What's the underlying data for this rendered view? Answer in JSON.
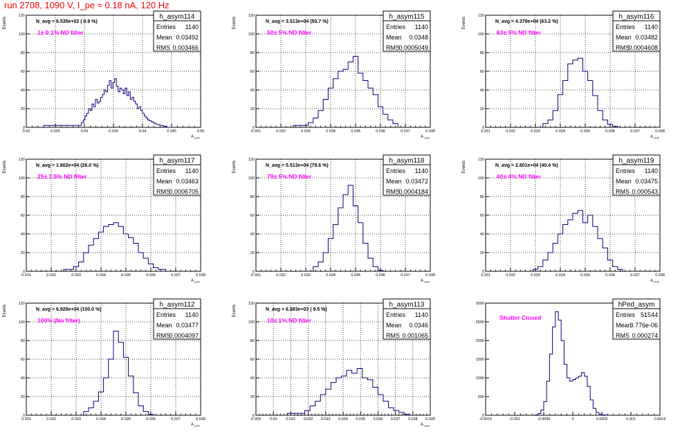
{
  "title": "run 2708,  1090 V, I_pe ≈ 0.18 nA, 120 Hz",
  "colors": {
    "title": "#ff0000",
    "histogram_line": "#00007f",
    "label_text": "#ff00ff",
    "grid": "#000000",
    "background": "#ffffff"
  },
  "chart_data": [
    {
      "type": "histogram",
      "name": "h_asym114",
      "stats": {
        "entries_label": "Entries",
        "entries": "1140",
        "mean_label": "Mean",
        "mean": "0.03492",
        "rms_label": "RMS",
        "rms": "0.003466"
      },
      "n_avg": "N_avg = 6.535e+02 ( 0.9 %)",
      "filter_label": "1± 0.1% ND filter",
      "ylabel": "Events",
      "xlabel": "A",
      "xsub": "LED",
      "xlim": [
        0.02,
        0.05
      ],
      "ylim": [
        0,
        120
      ],
      "xticks": [
        "0.02",
        "0.025",
        "0.03",
        "0.035",
        "0.04",
        "0.045",
        "0.05"
      ],
      "yticks": [
        "0",
        "20",
        "40",
        "60",
        "80",
        "100",
        "120"
      ],
      "grid": true,
      "bin_edges": [
        0.023,
        0.0295,
        0.0298,
        0.0301,
        0.0304,
        0.0307,
        0.031,
        0.0313,
        0.0316,
        0.0319,
        0.0322,
        0.0325,
        0.0328,
        0.0331,
        0.0334,
        0.0337,
        0.034,
        0.0343,
        0.0346,
        0.0349,
        0.0352,
        0.0355,
        0.0358,
        0.0361,
        0.0364,
        0.0367,
        0.037,
        0.0373,
        0.0376,
        0.0379,
        0.0382,
        0.0385,
        0.0388,
        0.0391,
        0.0394,
        0.0397,
        0.04,
        0.0403,
        0.0406,
        0.0409,
        0.0412,
        0.0415,
        0.0418,
        0.0421,
        0.0424,
        0.0427,
        0.043,
        0.0433,
        0.0436,
        0.0439,
        0.0442,
        0.045
      ],
      "counts": [
        2,
        5,
        8,
        12,
        15,
        20,
        18,
        25,
        22,
        30,
        26,
        28,
        32,
        35,
        40,
        38,
        45,
        50,
        42,
        48,
        52,
        44,
        38,
        42,
        40,
        36,
        42,
        34,
        38,
        30,
        32,
        28,
        25,
        20,
        22,
        18,
        15,
        12,
        10,
        8,
        7,
        6,
        5,
        4,
        3,
        3,
        2,
        2,
        1,
        1,
        0
      ]
    },
    {
      "type": "histogram",
      "name": "h_asym115",
      "stats": {
        "entries_label": "Entries",
        "entries": "1140",
        "mean_label": "Mean",
        "mean": "0.0348",
        "rms_label": "RMS",
        "rms": "0.0005049"
      },
      "n_avg": "N_avg = 3.513e+04 (50.7 %)",
      "filter_label": "50± 5% ND filter",
      "ylabel": "Events",
      "xlabel": "A",
      "xsub": "LED",
      "xlim": [
        0.031,
        0.038
      ],
      "ylim": [
        0,
        120
      ],
      "xticks": [
        "0.031",
        "0.032",
        "0.033",
        "0.034",
        "0.035",
        "0.036",
        "0.037",
        "0.038"
      ],
      "yticks": [
        "0",
        "20",
        "40",
        "60",
        "80",
        "100",
        "120"
      ],
      "grid": true,
      "bin_edges": [
        0.0325,
        0.0331,
        0.0333,
        0.0335,
        0.0337,
        0.0339,
        0.0341,
        0.0343,
        0.0345,
        0.0347,
        0.0349,
        0.0351,
        0.0353,
        0.0355,
        0.0357,
        0.0359,
        0.0361,
        0.0363,
        0.0365,
        0.0367
      ],
      "counts": [
        2,
        5,
        10,
        18,
        30,
        42,
        52,
        60,
        62,
        70,
        76,
        58,
        50,
        42,
        35,
        22,
        14,
        8,
        4,
        1
      ]
    },
    {
      "type": "histogram",
      "name": "h_asym116",
      "stats": {
        "entries_label": "Entries",
        "entries": "1140",
        "mean_label": "Mean",
        "mean": "0.03482",
        "rms_label": "RMS",
        "rms": "0.0004608"
      },
      "n_avg": "N_avg = 4.379e+04 (63.2 %)",
      "filter_label": "63± 5% ND filter",
      "ylabel": "Events",
      "xlabel": "A",
      "xsub": "LED",
      "xlim": [
        0.031,
        0.038
      ],
      "ylim": [
        0,
        120
      ],
      "xticks": [
        "0.031",
        "0.032",
        "0.033",
        "0.034",
        "0.035",
        "0.036",
        "0.037",
        "0.038"
      ],
      "yticks": [
        "0",
        "20",
        "40",
        "60",
        "80",
        "100",
        "120"
      ],
      "grid": true,
      "bin_edges": [
        0.0333,
        0.0335,
        0.0337,
        0.0339,
        0.0341,
        0.0343,
        0.0345,
        0.0347,
        0.0349,
        0.0351,
        0.0353,
        0.0355,
        0.0357,
        0.0359,
        0.0361,
        0.0363
      ],
      "counts": [
        4,
        8,
        18,
        35,
        50,
        68,
        72,
        74,
        60,
        50,
        34,
        18,
        8,
        3,
        1
      ]
    },
    {
      "type": "histogram",
      "name": "h_asym117",
      "stats": {
        "entries_label": "Entries",
        "entries": "1140",
        "mean_label": "Mean",
        "mean": "0.03463",
        "rms_label": "RMS",
        "rms": "0.0006705"
      },
      "n_avg": "N_avg = 1.802e+04 (26.0 %)",
      "filter_label": "25± 2.5% ND filter",
      "ylabel": "Events",
      "xlabel": "A",
      "xsub": "LED",
      "xlim": [
        0.031,
        0.038
      ],
      "ylim": [
        0,
        120
      ],
      "xticks": [
        "0.031",
        "0.032",
        "0.033",
        "0.034",
        "0.035",
        "0.036",
        "0.037",
        "0.038"
      ],
      "yticks": [
        "0",
        "20",
        "40",
        "60",
        "80",
        "100",
        "120"
      ],
      "grid": true,
      "bin_edges": [
        0.0325,
        0.0329,
        0.0331,
        0.0333,
        0.0335,
        0.0337,
        0.0339,
        0.0341,
        0.0343,
        0.0345,
        0.0347,
        0.0349,
        0.0351,
        0.0353,
        0.0355,
        0.0357,
        0.0359,
        0.0361,
        0.0363,
        0.0366
      ],
      "counts": [
        2,
        5,
        10,
        20,
        28,
        35,
        42,
        48,
        50,
        52,
        48,
        40,
        36,
        30,
        20,
        14,
        8,
        4,
        2
      ]
    },
    {
      "type": "histogram",
      "name": "h_asym118",
      "stats": {
        "entries_label": "Entries",
        "entries": "1140",
        "mean_label": "Mean",
        "mean": "0.03472",
        "rms_label": "RMS",
        "rms": "0.0004184"
      },
      "n_avg": "N_avg = 5.513e+04 (79.6 %)",
      "filter_label": "79± 5% ND filter",
      "ylabel": "Events",
      "xlabel": "A",
      "xsub": "LED",
      "xlim": [
        0.031,
        0.038
      ],
      "ylim": [
        0,
        120
      ],
      "xticks": [
        "0.031",
        "0.032",
        "0.033",
        "0.034",
        "0.035",
        "0.036",
        "0.037",
        "0.038"
      ],
      "yticks": [
        "0",
        "20",
        "40",
        "60",
        "80",
        "100",
        "120"
      ],
      "grid": true,
      "bin_edges": [
        0.0333,
        0.0335,
        0.0337,
        0.0339,
        0.0341,
        0.0343,
        0.0345,
        0.0347,
        0.0349,
        0.0351,
        0.0353,
        0.0355,
        0.0357,
        0.0359,
        0.0361
      ],
      "counts": [
        5,
        10,
        20,
        35,
        50,
        68,
        82,
        92,
        70,
        52,
        30,
        14,
        5,
        1
      ]
    },
    {
      "type": "histogram",
      "name": "h_asym119",
      "stats": {
        "entries_label": "Entries",
        "entries": "1140",
        "mean_label": "Mean",
        "mean": "0.03475",
        "rms_label": "RMS",
        "rms": "0.000543"
      },
      "n_avg": "N_avg = 2.801e+04 (40.4 %)",
      "filter_label": "40± 4% ND filter",
      "ylabel": "Events",
      "xlabel": "A",
      "xsub": "LED",
      "xlim": [
        0.031,
        0.038
      ],
      "ylim": [
        0,
        120
      ],
      "xticks": [
        "0.031",
        "0.032",
        "0.033",
        "0.034",
        "0.035",
        "0.036",
        "0.037",
        "0.038"
      ],
      "yticks": [
        "0",
        "20",
        "40",
        "60",
        "80",
        "100",
        "120"
      ],
      "grid": true,
      "bin_edges": [
        0.0329,
        0.0331,
        0.0333,
        0.0335,
        0.0337,
        0.0339,
        0.0341,
        0.0343,
        0.0345,
        0.0347,
        0.0349,
        0.0351,
        0.0353,
        0.0355,
        0.0357,
        0.0359,
        0.0361,
        0.0363,
        0.0365
      ],
      "counts": [
        2,
        5,
        12,
        20,
        30,
        40,
        50,
        55,
        62,
        65,
        52,
        60,
        48,
        35,
        25,
        12,
        5,
        2
      ]
    },
    {
      "type": "histogram",
      "name": "h_asym112",
      "stats": {
        "entries_label": "Entries",
        "entries": "1140",
        "mean_label": "Mean",
        "mean": "0.03477",
        "rms_label": "RMS",
        "rms": "0.0004097"
      },
      "n_avg": "N_avg = 6.928e+04 (100.0 %)",
      "filter_label": "100% (No filter)",
      "ylabel": "Events",
      "xlabel": "A",
      "xsub": "LED",
      "xlim": [
        0.031,
        0.038
      ],
      "ylim": [
        0,
        120
      ],
      "xticks": [
        "0.031",
        "0.032",
        "0.033",
        "0.034",
        "0.035",
        "0.036",
        "0.037",
        "0.038"
      ],
      "yticks": [
        "0",
        "20",
        "40",
        "60",
        "80",
        "100",
        "120"
      ],
      "grid": true,
      "bin_edges": [
        0.0333,
        0.0335,
        0.0337,
        0.0339,
        0.0341,
        0.0343,
        0.0345,
        0.0347,
        0.0349,
        0.0351,
        0.0353,
        0.0355,
        0.0357,
        0.0359,
        0.0361
      ],
      "counts": [
        4,
        8,
        15,
        25,
        40,
        60,
        90,
        78,
        62,
        42,
        24,
        10,
        4,
        1
      ]
    },
    {
      "type": "histogram",
      "name": "h_asym113",
      "stats": {
        "entries_label": "Entries",
        "entries": "1140",
        "mean_label": "Mean",
        "mean": "0.0346",
        "rms_label": "RMS",
        "rms": "0.001065"
      },
      "n_avg": "N_avg = 6.583e+03 ( 9.5 %)",
      "filter_label": "10± 1% ND filter",
      "ylabel": "Events",
      "xlabel": "A",
      "xsub": "LED",
      "xlim": [
        0.029,
        0.039
      ],
      "ylim": [
        0,
        120
      ],
      "xticks": [
        "0.029",
        "0.03",
        "0.031",
        "0.032",
        "0.033",
        "0.034",
        "0.035",
        "0.036",
        "0.037",
        "0.038",
        "0.039"
      ],
      "yticks": [
        "0",
        "20",
        "40",
        "60",
        "80",
        "100",
        "120"
      ],
      "grid": true,
      "bin_edges": [
        0.0308,
        0.0318,
        0.0321,
        0.0324,
        0.0327,
        0.033,
        0.0333,
        0.0336,
        0.0339,
        0.0342,
        0.0345,
        0.0348,
        0.0351,
        0.0354,
        0.0357,
        0.036,
        0.0363,
        0.0366,
        0.0369,
        0.0372,
        0.0375,
        0.0378
      ],
      "counts": [
        2,
        5,
        10,
        15,
        22,
        28,
        35,
        40,
        42,
        48,
        45,
        50,
        40,
        38,
        30,
        22,
        15,
        8,
        5,
        3,
        1
      ]
    },
    {
      "type": "histogram",
      "name": "hPed_asym",
      "stats": {
        "entries_label": "Entries",
        "entries": "51544",
        "mean_label": "Mean",
        "mean": "3.776e-06",
        "rms_label": "RMS",
        "rms": "0.000274"
      },
      "n_avg": "",
      "filter_label": "Shutter Closed",
      "ylabel": "",
      "xlabel": "",
      "xsub": "",
      "xlim": [
        -0.0015,
        0.0015
      ],
      "ylim": [
        0,
        3300
      ],
      "xticks": [
        "-0.0015",
        "-0.001",
        "-0.0005",
        "0",
        "0.0005",
        "0.001",
        "0.0015"
      ],
      "yticks": [
        "0",
        "500",
        "1000",
        "1500",
        "2000",
        "2500",
        "3000"
      ],
      "grid": false,
      "bin_edges": [
        -0.00065,
        -0.0006,
        -0.00055,
        -0.0005,
        -0.00045,
        -0.0004,
        -0.00035,
        -0.0003,
        -0.00025,
        -0.0002,
        -0.00015,
        -0.0001,
        -5e-05,
        0,
        5e-05,
        0.0001,
        0.00015,
        0.0002,
        0.00025,
        0.0003,
        0.00035,
        0.0004,
        0.00045,
        0.0005,
        0.00055,
        0.0006
      ],
      "counts": [
        10,
        50,
        150,
        400,
        1000,
        1800,
        2600,
        3050,
        2800,
        2200,
        1500,
        1100,
        1000,
        1050,
        1100,
        1150,
        1250,
        1150,
        850,
        450,
        200,
        80,
        30,
        10,
        5
      ]
    }
  ]
}
